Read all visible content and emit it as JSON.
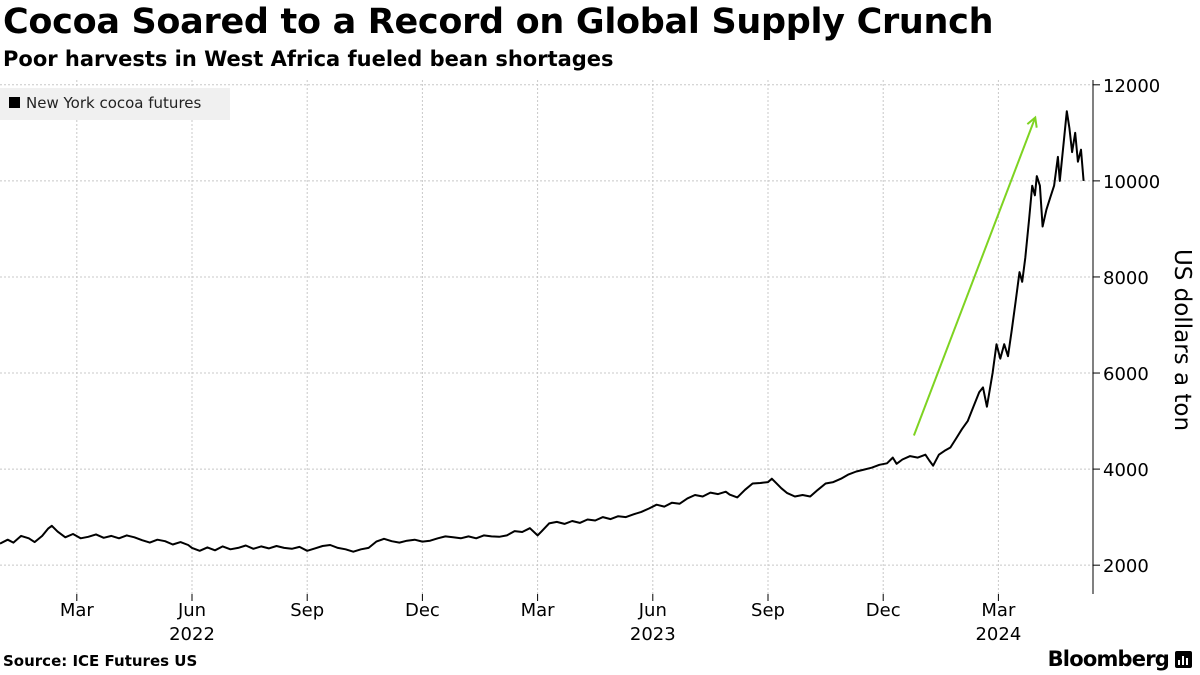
{
  "header": {
    "title": "Cocoa Soared to a Record on Global Supply Crunch",
    "subtitle": "Poor harvests in West Africa fueled bean shortages"
  },
  "footer": {
    "source": "Source: ICE Futures US",
    "brand": "Bloomberg",
    "brand_icon": "bar-chart-icon"
  },
  "colors": {
    "line": "#000000",
    "arrow": "#7ed321",
    "grid": "#c8c8c8",
    "legend_bg": "#f0f0f0"
  },
  "chart_data": {
    "type": "line",
    "title": "Cocoa Soared to a Record on Global Supply Crunch",
    "xlabel": "",
    "ylabel": "US dollars a ton",
    "ylim": [
      1400,
      12100
    ],
    "yticks": [
      2000,
      4000,
      6000,
      8000,
      10000,
      12000
    ],
    "x_month_ticks": [
      "Mar",
      "Jun",
      "Sep",
      "Dec",
      "Mar",
      "Jun",
      "Sep",
      "Dec",
      "Mar"
    ],
    "x_month_index": [
      2,
      5,
      8,
      11,
      14,
      17,
      20,
      23,
      26
    ],
    "x_year_labels": [
      {
        "label": "2022",
        "month_index": 5
      },
      {
        "label": "2023",
        "month_index": 17
      },
      {
        "label": "2024",
        "month_index": 26
      }
    ],
    "xlim_month_index": [
      0,
      27.5
    ],
    "grid": true,
    "legend_position": "top-left",
    "series": [
      {
        "name": "New York cocoa futures",
        "points": [
          [
            0.0,
            2450
          ],
          [
            0.2,
            2530
          ],
          [
            0.35,
            2470
          ],
          [
            0.55,
            2610
          ],
          [
            0.75,
            2560
          ],
          [
            0.9,
            2480
          ],
          [
            1.1,
            2610
          ],
          [
            1.25,
            2760
          ],
          [
            1.35,
            2820
          ],
          [
            1.5,
            2700
          ],
          [
            1.7,
            2580
          ],
          [
            1.9,
            2650
          ],
          [
            2.1,
            2560
          ],
          [
            2.3,
            2590
          ],
          [
            2.5,
            2640
          ],
          [
            2.7,
            2570
          ],
          [
            2.9,
            2610
          ],
          [
            3.1,
            2560
          ],
          [
            3.3,
            2620
          ],
          [
            3.5,
            2580
          ],
          [
            3.7,
            2520
          ],
          [
            3.9,
            2470
          ],
          [
            4.1,
            2530
          ],
          [
            4.3,
            2500
          ],
          [
            4.5,
            2430
          ],
          [
            4.7,
            2480
          ],
          [
            4.9,
            2420
          ],
          [
            5.0,
            2360
          ],
          [
            5.2,
            2300
          ],
          [
            5.4,
            2370
          ],
          [
            5.6,
            2310
          ],
          [
            5.8,
            2390
          ],
          [
            6.0,
            2330
          ],
          [
            6.2,
            2360
          ],
          [
            6.4,
            2410
          ],
          [
            6.6,
            2340
          ],
          [
            6.8,
            2390
          ],
          [
            7.0,
            2350
          ],
          [
            7.2,
            2400
          ],
          [
            7.4,
            2360
          ],
          [
            7.6,
            2340
          ],
          [
            7.8,
            2380
          ],
          [
            8.0,
            2300
          ],
          [
            8.2,
            2350
          ],
          [
            8.4,
            2400
          ],
          [
            8.6,
            2420
          ],
          [
            8.8,
            2360
          ],
          [
            9.0,
            2330
          ],
          [
            9.2,
            2280
          ],
          [
            9.4,
            2330
          ],
          [
            9.6,
            2360
          ],
          [
            9.8,
            2490
          ],
          [
            10.0,
            2550
          ],
          [
            10.2,
            2500
          ],
          [
            10.4,
            2470
          ],
          [
            10.6,
            2510
          ],
          [
            10.8,
            2530
          ],
          [
            11.0,
            2490
          ],
          [
            11.2,
            2510
          ],
          [
            11.4,
            2560
          ],
          [
            11.6,
            2600
          ],
          [
            11.8,
            2580
          ],
          [
            12.0,
            2560
          ],
          [
            12.2,
            2600
          ],
          [
            12.4,
            2560
          ],
          [
            12.6,
            2620
          ],
          [
            12.8,
            2600
          ],
          [
            13.0,
            2590
          ],
          [
            13.2,
            2620
          ],
          [
            13.4,
            2710
          ],
          [
            13.6,
            2690
          ],
          [
            13.8,
            2770
          ],
          [
            14.0,
            2620
          ],
          [
            14.1,
            2700
          ],
          [
            14.3,
            2870
          ],
          [
            14.5,
            2900
          ],
          [
            14.7,
            2860
          ],
          [
            14.9,
            2920
          ],
          [
            15.1,
            2880
          ],
          [
            15.3,
            2950
          ],
          [
            15.5,
            2930
          ],
          [
            15.7,
            3000
          ],
          [
            15.9,
            2960
          ],
          [
            16.1,
            3020
          ],
          [
            16.3,
            3000
          ],
          [
            16.5,
            3060
          ],
          [
            16.7,
            3110
          ],
          [
            16.9,
            3180
          ],
          [
            17.1,
            3260
          ],
          [
            17.3,
            3220
          ],
          [
            17.5,
            3300
          ],
          [
            17.7,
            3280
          ],
          [
            17.9,
            3390
          ],
          [
            18.1,
            3460
          ],
          [
            18.3,
            3430
          ],
          [
            18.5,
            3510
          ],
          [
            18.7,
            3480
          ],
          [
            18.9,
            3530
          ],
          [
            19.0,
            3470
          ],
          [
            19.2,
            3410
          ],
          [
            19.4,
            3570
          ],
          [
            19.6,
            3700
          ],
          [
            19.8,
            3710
          ],
          [
            20.0,
            3730
          ],
          [
            20.1,
            3800
          ],
          [
            20.2,
            3720
          ],
          [
            20.35,
            3600
          ],
          [
            20.5,
            3500
          ],
          [
            20.7,
            3430
          ],
          [
            20.9,
            3460
          ],
          [
            21.1,
            3430
          ],
          [
            21.3,
            3570
          ],
          [
            21.5,
            3700
          ],
          [
            21.7,
            3730
          ],
          [
            21.9,
            3800
          ],
          [
            22.1,
            3890
          ],
          [
            22.3,
            3950
          ],
          [
            22.5,
            3990
          ],
          [
            22.7,
            4030
          ],
          [
            22.9,
            4090
          ],
          [
            23.1,
            4120
          ],
          [
            23.25,
            4240
          ],
          [
            23.35,
            4110
          ],
          [
            23.5,
            4200
          ],
          [
            23.7,
            4270
          ],
          [
            23.9,
            4240
          ],
          [
            24.1,
            4300
          ],
          [
            24.2,
            4180
          ],
          [
            24.3,
            4070
          ],
          [
            24.45,
            4300
          ],
          [
            24.6,
            4380
          ],
          [
            24.75,
            4450
          ],
          [
            24.9,
            4640
          ],
          [
            25.05,
            4830
          ],
          [
            25.2,
            5000
          ],
          [
            25.35,
            5300
          ],
          [
            25.5,
            5600
          ],
          [
            25.6,
            5700
          ],
          [
            25.7,
            5300
          ],
          [
            25.85,
            6000
          ],
          [
            25.95,
            6600
          ],
          [
            26.05,
            6300
          ],
          [
            26.15,
            6600
          ],
          [
            26.25,
            6350
          ],
          [
            26.35,
            6900
          ],
          [
            26.45,
            7500
          ],
          [
            26.55,
            8100
          ],
          [
            26.62,
            7900
          ],
          [
            26.7,
            8400
          ],
          [
            26.8,
            9200
          ],
          [
            26.88,
            9900
          ],
          [
            26.95,
            9700
          ],
          [
            27.0,
            10100
          ],
          [
            27.08,
            9900
          ],
          [
            27.15,
            9050
          ],
          [
            27.25,
            9400
          ],
          [
            27.35,
            9650
          ],
          [
            27.45,
            9900
          ],
          [
            27.55,
            10500
          ],
          [
            27.6,
            10000
          ],
          [
            27.7,
            10800
          ],
          [
            27.78,
            11450
          ],
          [
            27.85,
            11100
          ],
          [
            27.92,
            10600
          ],
          [
            28.0,
            11000
          ],
          [
            28.07,
            10400
          ],
          [
            28.15,
            10650
          ],
          [
            28.22,
            10000
          ]
        ]
      }
    ],
    "annotations": [
      {
        "type": "arrow",
        "from": [
          23.8,
          4700
        ],
        "to": [
          26.95,
          11300
        ],
        "color": "#7ed321"
      }
    ]
  }
}
